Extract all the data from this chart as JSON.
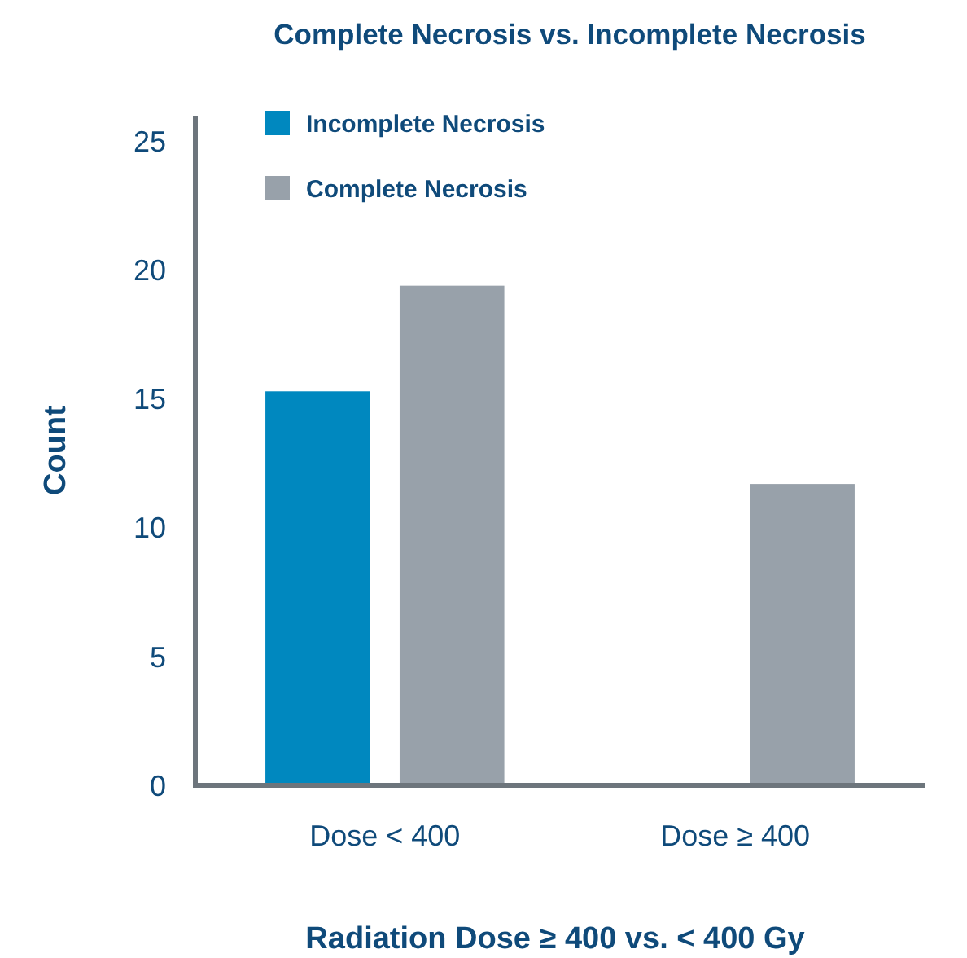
{
  "chart_data": {
    "type": "bar",
    "title": "Complete Necrosis vs. Incomplete Necrosis",
    "xlabel": "Radiation Dose ≥ 400 vs. < 400 Gy",
    "ylabel": "Count",
    "categories": [
      "Dose < 400",
      "Dose ≥ 400"
    ],
    "series": [
      {
        "name": "Incomplete Necrosis",
        "color": "#0088bf",
        "values": [
          15.3,
          null
        ]
      },
      {
        "name": "Complete Necrosis",
        "color": "#98a1aa",
        "values": [
          19.4,
          11.7
        ]
      }
    ],
    "ylim": [
      0,
      26
    ],
    "yticks": [
      0,
      5,
      10,
      15,
      20,
      25
    ],
    "legend": "top left",
    "grid": false
  }
}
